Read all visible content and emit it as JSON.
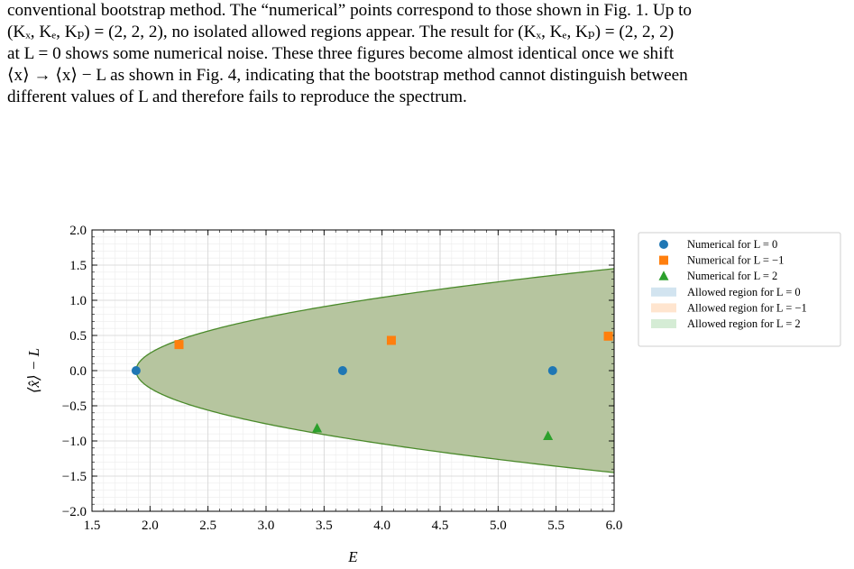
{
  "paragraph": {
    "lines": [
      "conventional bootstrap method. The “numerical” points correspond to those shown in Fig. 1. Up to",
      "(Kₓ, Kₑ, Kₚ) = (2, 2, 2), no isolated allowed regions appear. The result for (Kₓ, Kₑ, Kₚ) = (2, 2, 2)",
      "at L = 0 shows some numerical noise. These three figures become almost identical once we shift",
      "⟨x⟩ → ⟨x⟩ − L as shown in Fig. 4, indicating that the bootstrap method cannot distinguish between",
      "different values of L and therefore fails to reproduce the spectrum."
    ]
  },
  "chart_data": {
    "type": "scatter",
    "xlabel": "E",
    "ylabel": "⟨x̂⟩ − L",
    "xlim": [
      1.5,
      6.0
    ],
    "ylim": [
      -2.0,
      2.0
    ],
    "xticks": [
      "1.5",
      "2.0",
      "2.5",
      "3.0",
      "3.5",
      "4.0",
      "4.5",
      "5.0",
      "5.5",
      "6.0"
    ],
    "yticks": [
      "2.0",
      "1.5",
      "1.0",
      "0.5",
      "0.0",
      "−0.5",
      "−1.0",
      "−1.5",
      "−2.0"
    ],
    "grid": true,
    "legend_placement": "outside-right",
    "series": [
      {
        "name": "Numerical for L = 0",
        "marker": "circle",
        "color": "#1f77b4",
        "points": [
          [
            1.88,
            0.0
          ],
          [
            3.66,
            0.0
          ],
          [
            5.47,
            0.0
          ]
        ]
      },
      {
        "name": "Numerical for L = −1",
        "marker": "square",
        "color": "#ff7f0e",
        "points": [
          [
            2.25,
            0.37
          ],
          [
            4.08,
            0.43
          ],
          [
            5.95,
            0.49
          ]
        ]
      },
      {
        "name": "Numerical for L = 2",
        "marker": "triangle",
        "color": "#2ca02c",
        "points": [
          [
            3.44,
            -0.82
          ],
          [
            5.43,
            -0.93
          ]
        ]
      }
    ],
    "regions": [
      {
        "name": "Allowed region for L = 0",
        "color": "#1f77b4"
      },
      {
        "name": "Allowed region for L = −1",
        "color": "#ff7f0e"
      },
      {
        "name": "Allowed region for L = 2",
        "color": "#2ca02c"
      }
    ],
    "region_boundary": {
      "vertex_E": 1.88,
      "amplitude_at_E6": 1.45
    }
  }
}
